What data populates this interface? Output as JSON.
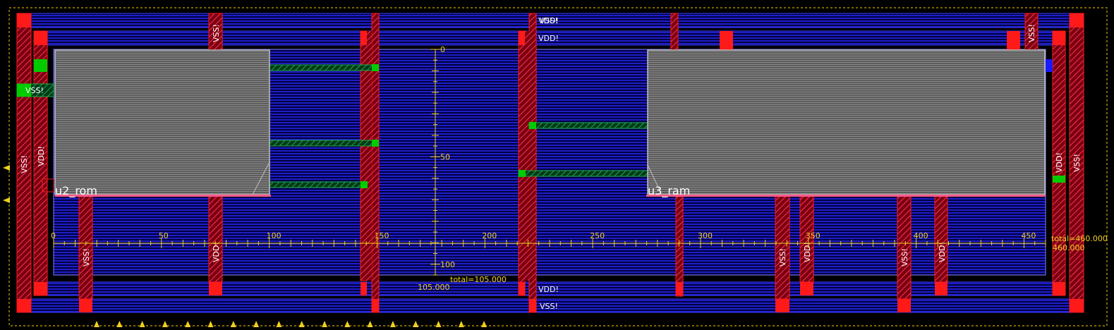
{
  "colors": {
    "background": "#000000",
    "metal_blue": "#1a1aff",
    "metal_red": "#ff1a1a",
    "via_green": "#00cc00",
    "ruler": "#f0d020",
    "cell_fill": "#6a6a6a",
    "cell_border": "#c0c0c0"
  },
  "rails": {
    "top_outer": "VSS!",
    "top_inner": "VDD!",
    "bottom_inner": "VDD!",
    "bottom_outer": "VSS!",
    "left_outer": "VSS!",
    "left_inner": "VDD!",
    "right_inner": "VDD!",
    "right_outer": "VSS!",
    "left_stub": "VSS!"
  },
  "cells": {
    "rom": "u2_rom",
    "ram": "u3_ram"
  },
  "stripes": {
    "top": [
      "VSS!",
      "VDD!",
      "VSS!"
    ],
    "bottom": [
      "VSS!",
      "VDD!",
      "VSS!",
      "VDD!",
      "VSS!",
      "VDD!"
    ]
  },
  "ruler_h": {
    "ticks": [
      "0",
      "50",
      "100",
      "150",
      "200",
      "250",
      "300",
      "350",
      "400",
      "450"
    ],
    "total_label": "total=460.000",
    "end_label": "460.000"
  },
  "ruler_v": {
    "ticks": [
      "0",
      "50",
      "100"
    ],
    "total_label": "total=105.000",
    "end_label": "105.000"
  }
}
